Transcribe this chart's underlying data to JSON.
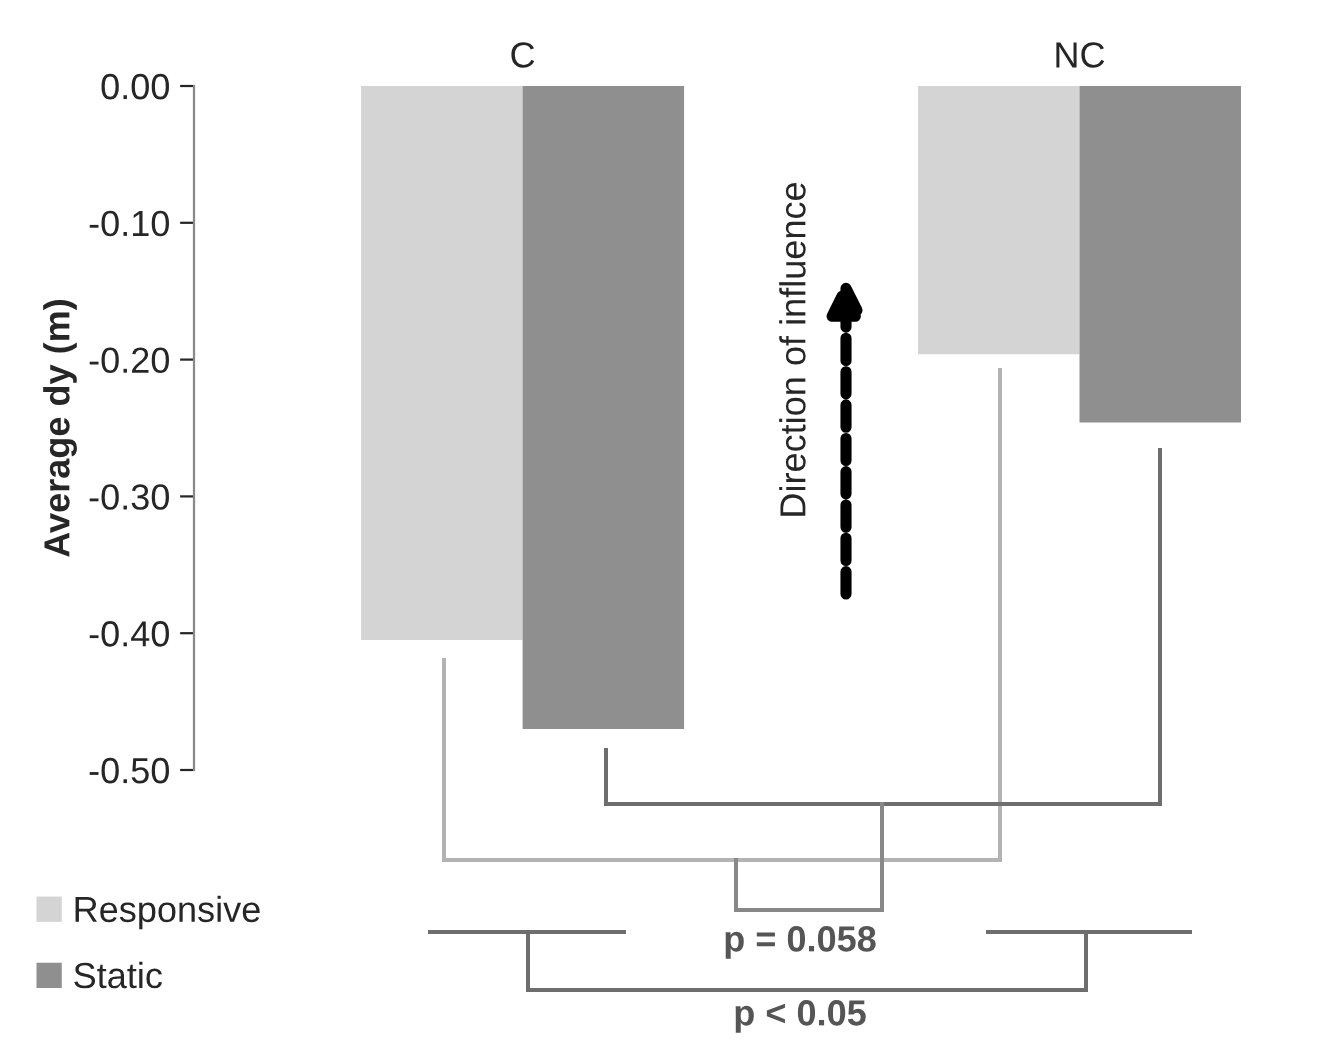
{
  "chart_data": {
    "type": "bar",
    "ylabel": "Average dy (m)",
    "categories": [
      "C",
      "NC"
    ],
    "series": [
      {
        "name": "Responsive",
        "color": "#d4d4d4",
        "values": [
          -0.405,
          -0.196
        ]
      },
      {
        "name": "Static",
        "color": "#8f8f8f",
        "values": [
          -0.47,
          -0.246
        ]
      }
    ],
    "ylim": [
      -0.5,
      0
    ],
    "yticks": [
      {
        "value": 0,
        "label": "0.00"
      },
      {
        "value": -0.1,
        "label": "-0.10"
      },
      {
        "value": -0.2,
        "label": "-0.20"
      },
      {
        "value": -0.3,
        "label": "-0.30"
      },
      {
        "value": -0.4,
        "label": "-0.40"
      },
      {
        "value": -0.5,
        "label": "-0.50"
      }
    ],
    "grid": false,
    "legend": "bottom left",
    "annotations": [
      "Direction of influence",
      "p = 0.058",
      "p < 0.05"
    ]
  }
}
